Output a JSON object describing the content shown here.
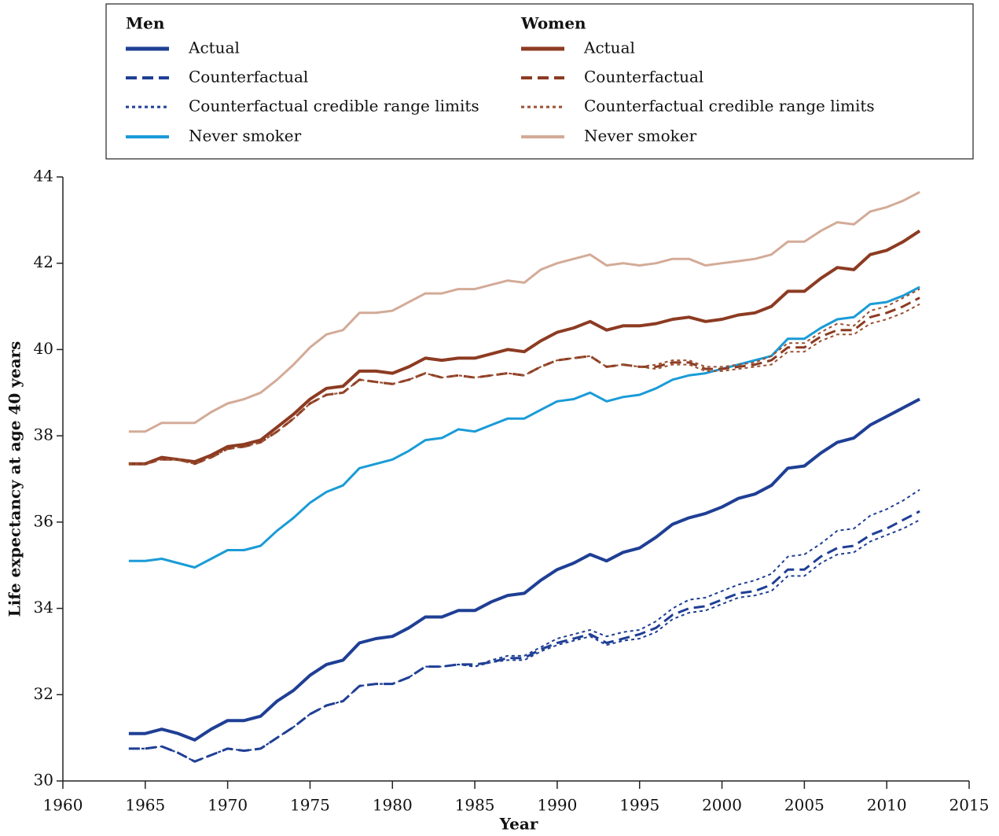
{
  "chart_data": {
    "type": "line",
    "xlabel": "Year",
    "ylabel": "Life expectancy at age 40 years",
    "xlim": [
      1960,
      2015
    ],
    "xticks": [
      1960,
      1965,
      1970,
      1975,
      1980,
      1985,
      1990,
      1995,
      2000,
      2005,
      2010,
      2015
    ],
    "ylim": [
      30,
      44
    ],
    "yticks": [
      30,
      32,
      34,
      36,
      38,
      40,
      42,
      44
    ],
    "x": [
      1964,
      1965,
      1966,
      1967,
      1968,
      1969,
      1970,
      1971,
      1972,
      1973,
      1974,
      1975,
      1976,
      1977,
      1978,
      1979,
      1980,
      1981,
      1982,
      1983,
      1984,
      1985,
      1986,
      1987,
      1988,
      1989,
      1990,
      1991,
      1992,
      1993,
      1994,
      1995,
      1996,
      1997,
      1998,
      1999,
      2000,
      2001,
      2002,
      2003,
      2004,
      2005,
      2006,
      2007,
      2008,
      2009,
      2010,
      2011,
      2012
    ],
    "groups": [
      {
        "title": "Men",
        "series": [
          {
            "name": "Actual",
            "color": "#1f3f95",
            "dash": "solid",
            "width": 4,
            "values": [
              31.1,
              31.1,
              31.2,
              31.1,
              30.95,
              31.2,
              31.4,
              31.4,
              31.5,
              31.85,
              32.1,
              32.45,
              32.7,
              32.8,
              33.2,
              33.3,
              33.35,
              33.55,
              33.8,
              33.8,
              33.95,
              33.95,
              34.15,
              34.3,
              34.35,
              34.65,
              34.9,
              35.05,
              35.25,
              35.1,
              35.3,
              35.4,
              35.65,
              35.95,
              36.1,
              36.2,
              36.35,
              36.55,
              36.65,
              36.85,
              37.25,
              37.3,
              37.6,
              37.85,
              37.95,
              38.25,
              38.45,
              38.65,
              38.85
            ]
          },
          {
            "name": "Counterfactual",
            "color": "#1f3f95",
            "dash": "dashed",
            "width": 3,
            "values": [
              30.75,
              30.75,
              30.8,
              30.65,
              30.45,
              30.6,
              30.75,
              30.7,
              30.75,
              31.0,
              31.25,
              31.55,
              31.75,
              31.85,
              32.2,
              32.25,
              32.25,
              32.4,
              32.65,
              32.65,
              32.7,
              32.7,
              32.75,
              32.85,
              32.85,
              33.05,
              33.2,
              33.3,
              33.4,
              33.2,
              33.3,
              33.4,
              33.55,
              33.85,
              34.0,
              34.05,
              34.2,
              34.35,
              34.4,
              34.55,
              34.9,
              34.9,
              35.2,
              35.4,
              35.45,
              35.7,
              35.85,
              36.05,
              36.25
            ]
          },
          {
            "name": "Counterfactual credible range limits",
            "color": "#1f3f95",
            "dash": "dotted",
            "width": 2,
            "lower": [
              30.75,
              30.75,
              30.8,
              30.65,
              30.45,
              30.6,
              30.75,
              30.7,
              30.75,
              31.0,
              31.25,
              31.55,
              31.75,
              31.85,
              32.2,
              32.25,
              32.25,
              32.4,
              32.65,
              32.65,
              32.7,
              32.65,
              32.75,
              32.8,
              32.8,
              33.0,
              33.15,
              33.25,
              33.35,
              33.15,
              33.25,
              33.3,
              33.45,
              33.75,
              33.9,
              33.95,
              34.1,
              34.25,
              34.3,
              34.4,
              34.75,
              34.75,
              35.05,
              35.25,
              35.3,
              35.55,
              35.7,
              35.85,
              36.05
            ],
            "upper": [
              30.75,
              30.75,
              30.8,
              30.65,
              30.45,
              30.6,
              30.75,
              30.7,
              30.75,
              31.0,
              31.25,
              31.55,
              31.75,
              31.85,
              32.2,
              32.25,
              32.25,
              32.4,
              32.65,
              32.65,
              32.7,
              32.65,
              32.8,
              32.9,
              32.9,
              33.1,
              33.3,
              33.4,
              33.5,
              33.35,
              33.45,
              33.5,
              33.7,
              34.0,
              34.2,
              34.25,
              34.4,
              34.55,
              34.65,
              34.8,
              35.2,
              35.25,
              35.5,
              35.8,
              35.85,
              36.15,
              36.3,
              36.5,
              36.75
            ]
          },
          {
            "name": "Never smoker",
            "color": "#1a9bd7",
            "dash": "solid",
            "width": 3,
            "values": [
              35.1,
              35.1,
              35.15,
              35.05,
              34.95,
              35.15,
              35.35,
              35.35,
              35.45,
              35.8,
              36.1,
              36.45,
              36.7,
              36.85,
              37.25,
              37.35,
              37.45,
              37.65,
              37.9,
              37.95,
              38.15,
              38.1,
              38.25,
              38.4,
              38.4,
              38.6,
              38.8,
              38.85,
              39.0,
              38.8,
              38.9,
              38.95,
              39.1,
              39.3,
              39.4,
              39.45,
              39.55,
              39.65,
              39.75,
              39.85,
              40.25,
              40.25,
              40.5,
              40.7,
              40.75,
              41.05,
              41.1,
              41.25,
              41.45
            ]
          }
        ]
      },
      {
        "title": "Women",
        "series": [
          {
            "name": "Actual",
            "color": "#8c3b22",
            "dash": "solid",
            "width": 4,
            "values": [
              37.35,
              37.35,
              37.5,
              37.45,
              37.4,
              37.55,
              37.75,
              37.8,
              37.9,
              38.2,
              38.5,
              38.85,
              39.1,
              39.15,
              39.5,
              39.5,
              39.45,
              39.6,
              39.8,
              39.75,
              39.8,
              39.8,
              39.9,
              40.0,
              39.95,
              40.2,
              40.4,
              40.5,
              40.65,
              40.45,
              40.55,
              40.55,
              40.6,
              40.7,
              40.75,
              40.65,
              40.7,
              40.8,
              40.85,
              41.0,
              41.35,
              41.35,
              41.65,
              41.9,
              41.85,
              42.2,
              42.3,
              42.5,
              42.75
            ]
          },
          {
            "name": "Counterfactual",
            "color": "#8c3b22",
            "dash": "dashed",
            "width": 3,
            "values": [
              37.35,
              37.35,
              37.45,
              37.45,
              37.35,
              37.5,
              37.7,
              37.75,
              37.85,
              38.1,
              38.4,
              38.75,
              38.95,
              39.0,
              39.3,
              39.25,
              39.2,
              39.3,
              39.45,
              39.35,
              39.4,
              39.35,
              39.4,
              39.45,
              39.4,
              39.6,
              39.75,
              39.8,
              39.85,
              39.6,
              39.65,
              39.6,
              39.6,
              39.7,
              39.7,
              39.55,
              39.55,
              39.6,
              39.65,
              39.75,
              40.05,
              40.05,
              40.3,
              40.45,
              40.45,
              40.75,
              40.85,
              41.0,
              41.2
            ]
          },
          {
            "name": "Counterfactual credible range limits",
            "color": "#9a5030",
            "dash": "dotted",
            "width": 2,
            "lower": [
              37.35,
              37.35,
              37.45,
              37.45,
              37.35,
              37.5,
              37.7,
              37.75,
              37.85,
              38.1,
              38.4,
              38.75,
              38.95,
              39.0,
              39.3,
              39.25,
              39.2,
              39.3,
              39.45,
              39.35,
              39.4,
              39.35,
              39.4,
              39.45,
              39.4,
              39.6,
              39.75,
              39.8,
              39.85,
              39.6,
              39.65,
              39.6,
              39.55,
              39.65,
              39.65,
              39.5,
              39.5,
              39.55,
              39.6,
              39.65,
              39.95,
              39.95,
              40.2,
              40.35,
              40.35,
              40.6,
              40.7,
              40.85,
              41.05
            ],
            "upper": [
              37.35,
              37.35,
              37.45,
              37.45,
              37.35,
              37.5,
              37.7,
              37.75,
              37.85,
              38.1,
              38.4,
              38.75,
              38.95,
              39.0,
              39.3,
              39.25,
              39.2,
              39.3,
              39.45,
              39.35,
              39.4,
              39.35,
              39.4,
              39.45,
              39.4,
              39.6,
              39.75,
              39.8,
              39.85,
              39.6,
              39.65,
              39.6,
              39.65,
              39.75,
              39.75,
              39.6,
              39.6,
              39.65,
              39.7,
              39.85,
              40.15,
              40.15,
              40.4,
              40.6,
              40.55,
              40.9,
              41.0,
              41.2,
              41.4
            ]
          },
          {
            "name": "Never smoker",
            "color": "#d3ab98",
            "dash": "solid",
            "width": 3,
            "values": [
              38.1,
              38.1,
              38.3,
              38.3,
              38.3,
              38.55,
              38.75,
              38.85,
              39.0,
              39.3,
              39.65,
              40.05,
              40.35,
              40.45,
              40.85,
              40.85,
              40.9,
              41.1,
              41.3,
              41.3,
              41.4,
              41.4,
              41.5,
              41.6,
              41.55,
              41.85,
              42.0,
              42.1,
              42.2,
              41.95,
              42.0,
              41.95,
              42.0,
              42.1,
              42.1,
              41.95,
              42.0,
              42.05,
              42.1,
              42.2,
              42.5,
              42.5,
              42.75,
              42.95,
              42.9,
              43.2,
              43.3,
              43.45,
              43.65
            ]
          }
        ]
      }
    ]
  }
}
